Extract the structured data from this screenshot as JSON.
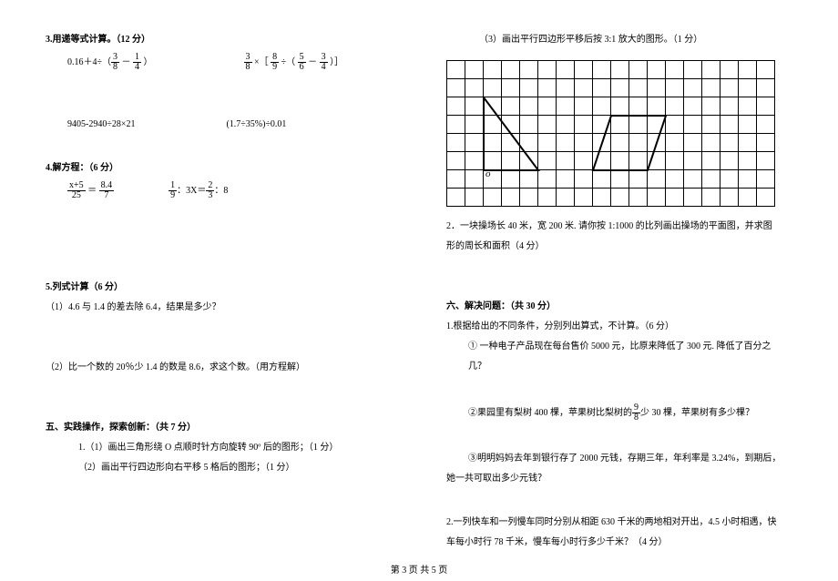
{
  "left": {
    "sec3_title": "3.用递等式计算。（12 分）",
    "eq3_1a": "0.16＋4÷（",
    "eq3_1b": "  ）",
    "eq3_2a": " ×［ ",
    "eq3_2b": " ÷（ ",
    "eq3_2c": "  ）］",
    "eq3_3": "9405-2940÷28×21",
    "eq3_4": "(1.7÷35%)÷0.01",
    "sec4_title": "4.解方程：（6 分）",
    "eq4_2a": "：3X＝",
    "eq4_2b": "：8",
    "sec5_title": "5.列式计算（6 分）",
    "sec5_1": "（1）4.6 与 1.4 的差去除 6.4，结果是多少？",
    "sec5_2": "（2）比一个数的 20％少 1.4 的数是 8.6，求这个数。（用方程解）",
    "sec5b_title": "五、实践操作，探索创新：（共 7 分）",
    "sec5b_1": "1.（1）画出三角形绕 O 点顺时针方向旋转 90º 后的图形；（1 分）",
    "sec5b_2": "（2）画出平行四边形向右平移 5 格后的图形；（1 分）",
    "f38n": "3",
    "f38d": "8",
    "f14n": "1",
    "f14d": "4",
    "f89n": "8",
    "f89d": "9",
    "f56n": "5",
    "f56d": "6",
    "f34n": "3",
    "f34d": "4",
    "fx5n": "x+5",
    "fx5d": "25",
    "f847n": "8.4",
    "f847d": "7",
    "f19n": "1",
    "f19d": "9",
    "f23n": "2",
    "f23d": "3"
  },
  "right": {
    "q3": "（3）画出平行四边形平移后按 3:1 放大的图形。（1 分）",
    "o_label": "o",
    "q2_a": "2．一块操场长 40 米，宽 200 米. 请你按 1:1000 的比列画出操场的平面图，并求图",
    "q2_b": "形的周长和面积（4 分）",
    "sec6_title": "六、解决问题：（共 30 分）",
    "sec6_1": "1.根据给出的不同条件，分别列出算式，不计算。（6 分）",
    "sec6_1_1a": "①  一种电子产品现在每台售价 5000 元，比原来降低了 300 元. 降低了百分之",
    "sec6_1_1b": "几？",
    "sec6_1_2a": "②果园里有梨树 400 棵，苹果树比梨树的",
    "f98n": "9",
    "f98d": "8",
    "sec6_1_2b": "少 30 棵，苹果树有多少棵？",
    "sec6_1_3a": "③明明妈妈去年到银行存了 2000 元钱，存期三年，年利率是 3.24%，到期后，",
    "sec6_1_3b": "她一共可取出多少元钱？",
    "sec6_2a": "2.一列快车和一列慢车同时分别从相距 630 千米的两地相对开出，4.5 小时相遇，快",
    "sec6_2b": "车每小时行 78 千米，慢车每小时行多少千米？（4 分）"
  },
  "footer": "第 3 页    共 5 页",
  "grid": {
    "cols": 18,
    "rows": 8
  }
}
